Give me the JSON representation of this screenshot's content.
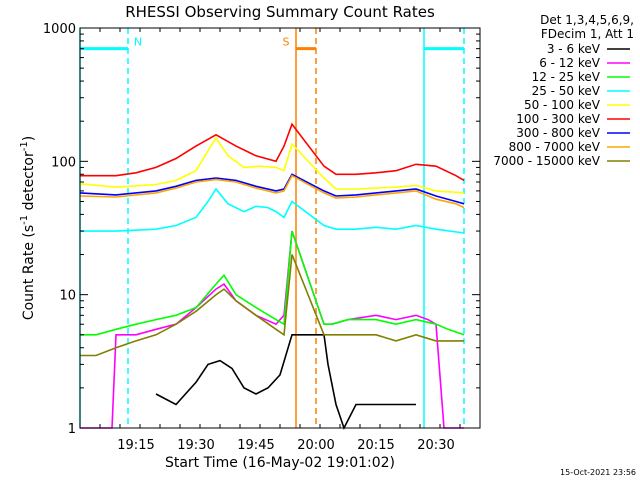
{
  "chart_data": {
    "type": "line",
    "title": "RHESSI Observing Summary Count Rates",
    "xlabel": "Start Time (16-May-02 19:01:02)",
    "ylabel": "Count Rate (s⁻¹ detector⁻¹)",
    "ylabel_parts": {
      "main": "Count Rate (s",
      "exp1": "-1",
      "mid": " detector",
      "exp2": "-1",
      "end": ")"
    },
    "y_scale": "log",
    "ylim": [
      1,
      1000
    ],
    "y_ticks": [
      {
        "value": 1,
        "label": "1"
      },
      {
        "value": 10,
        "label": "10"
      },
      {
        "value": 100,
        "label": "100"
      },
      {
        "value": 1000,
        "label": "1000"
      }
    ],
    "xlim": [
      "19:01",
      "20:41"
    ],
    "x_ticks": [
      {
        "time": "19:15",
        "label": "19:15"
      },
      {
        "time": "19:30",
        "label": "19:30"
      },
      {
        "time": "19:45",
        "label": "19:45"
      },
      {
        "time": "20:00",
        "label": "20:00"
      },
      {
        "time": "20:15",
        "label": "20:15"
      },
      {
        "time": "20:30",
        "label": "20:30"
      }
    ],
    "legend": {
      "placement": "right",
      "header": [
        "Det 1,3,4,5,6,9,",
        "FDecim 1, Att 1"
      ]
    },
    "series": [
      {
        "name": "3 - 6 keV",
        "color": "#000000",
        "x": [
          "19:01",
          "19:14",
          "19:20",
          "19:25",
          "19:30",
          "19:33",
          "19:36",
          "19:39",
          "19:42",
          "19:45",
          "19:48",
          "19:51",
          "19:54",
          "20:02",
          "20:03",
          "20:05",
          "20:07",
          "20:10",
          "20:15",
          "20:20",
          "20:25",
          "20:30",
          "20:37"
        ],
        "y": [
          null,
          null,
          1.8,
          1.5,
          2.2,
          3,
          3.2,
          2.8,
          2,
          1.8,
          2,
          2.5,
          5,
          5,
          3,
          1.5,
          1,
          1.5,
          1.5,
          1.5,
          1.5,
          null,
          null
        ]
      },
      {
        "name": "6 - 12 keV",
        "color": "#ff00ff",
        "x": [
          "19:01",
          "19:09",
          "19:10",
          "19:15",
          "19:20",
          "19:25",
          "19:30",
          "19:35",
          "19:37",
          "19:40",
          "19:45",
          "19:50",
          "19:52",
          "19:54",
          "20:02",
          "20:04",
          "20:08",
          "20:15",
          "20:20",
          "20:25",
          "20:28",
          "20:30",
          "20:32",
          "20:37"
        ],
        "y": [
          1,
          1,
          5,
          5,
          5.5,
          6,
          8,
          11,
          12,
          9,
          7,
          6,
          7,
          30,
          6,
          6,
          6.5,
          7,
          6.5,
          7,
          6.5,
          6,
          1,
          1
        ]
      },
      {
        "name": "12 - 25 keV",
        "color": "#00ff00",
        "x": [
          "19:01",
          "19:05",
          "19:10",
          "19:15",
          "19:20",
          "19:25",
          "19:30",
          "19:35",
          "19:37",
          "19:40",
          "19:45",
          "19:50",
          "19:52",
          "19:54",
          "20:02",
          "20:04",
          "20:08",
          "20:15",
          "20:20",
          "20:25",
          "20:30",
          "20:33",
          "20:37"
        ],
        "y": [
          5,
          5,
          5.5,
          6,
          6.5,
          7,
          8,
          12,
          14,
          10,
          8,
          6.5,
          6,
          30,
          6,
          6,
          6.5,
          6.5,
          6,
          6.5,
          6,
          5.5,
          5
        ]
      },
      {
        "name": "25 - 50 keV",
        "color": "#00ffff",
        "x": [
          "19:01",
          "19:10",
          "19:20",
          "19:25",
          "19:30",
          "19:33",
          "19:35",
          "19:38",
          "19:42",
          "19:45",
          "19:48",
          "19:50",
          "19:52",
          "19:54",
          "20:02",
          "20:05",
          "20:10",
          "20:15",
          "20:20",
          "20:25",
          "20:30",
          "20:37"
        ],
        "y": [
          30,
          30,
          31,
          33,
          38,
          50,
          62,
          48,
          42,
          46,
          45,
          42,
          38,
          50,
          33,
          31,
          31,
          32,
          31,
          33,
          31,
          29
        ]
      },
      {
        "name": "50 - 100 keV",
        "color": "#ffff00",
        "x": [
          "19:01",
          "19:10",
          "19:20",
          "19:25",
          "19:30",
          "19:33",
          "19:35",
          "19:38",
          "19:42",
          "19:46",
          "19:50",
          "19:52",
          "19:54",
          "20:02",
          "20:05",
          "20:10",
          "20:15",
          "20:20",
          "20:25",
          "20:30",
          "20:37"
        ],
        "y": [
          68,
          64,
          67,
          72,
          85,
          120,
          150,
          110,
          90,
          92,
          90,
          85,
          135,
          75,
          62,
          62,
          63,
          64,
          66,
          60,
          58
        ]
      },
      {
        "name": "100 - 300 keV",
        "color": "#ff0000",
        "x": [
          "19:01",
          "19:10",
          "19:15",
          "19:20",
          "19:25",
          "19:30",
          "19:35",
          "19:40",
          "19:45",
          "19:50",
          "19:52",
          "19:54",
          "20:02",
          "20:05",
          "20:10",
          "20:15",
          "20:20",
          "20:25",
          "20:30",
          "20:35",
          "20:37"
        ],
        "y": [
          78,
          78,
          82,
          90,
          105,
          130,
          158,
          130,
          110,
          100,
          130,
          190,
          92,
          80,
          80,
          82,
          85,
          95,
          92,
          78,
          72
        ]
      },
      {
        "name": "300 - 800 keV",
        "color": "#0000ff",
        "x": [
          "19:01",
          "19:10",
          "19:20",
          "19:25",
          "19:30",
          "19:35",
          "19:40",
          "19:45",
          "19:50",
          "19:52",
          "19:54",
          "20:02",
          "20:05",
          "20:10",
          "20:15",
          "20:20",
          "20:25",
          "20:30",
          "20:35",
          "20:37"
        ],
        "y": [
          58,
          56,
          60,
          65,
          72,
          75,
          72,
          65,
          60,
          62,
          80,
          60,
          55,
          56,
          58,
          60,
          62,
          55,
          50,
          48
        ]
      },
      {
        "name": "800 - 7000 keV",
        "color": "#ffa500",
        "x": [
          "19:01",
          "19:10",
          "19:20",
          "19:25",
          "19:30",
          "19:35",
          "19:40",
          "19:45",
          "19:50",
          "19:52",
          "19:54",
          "20:02",
          "20:05",
          "20:10",
          "20:15",
          "20:20",
          "20:25",
          "20:30",
          "20:35",
          "20:37"
        ],
        "y": [
          55,
          54,
          58,
          63,
          70,
          73,
          70,
          63,
          58,
          60,
          78,
          58,
          53,
          54,
          56,
          58,
          60,
          52,
          48,
          45
        ]
      },
      {
        "name": "7000 - 15000 keV",
        "color": "#808000",
        "x": [
          "19:01",
          "19:05",
          "19:10",
          "19:15",
          "19:20",
          "19:25",
          "19:30",
          "19:35",
          "19:37",
          "19:40",
          "19:45",
          "19:50",
          "19:52",
          "19:54",
          "20:02",
          "20:04",
          "20:08",
          "20:15",
          "20:20",
          "20:25",
          "20:30",
          "20:33",
          "20:37"
        ],
        "y": [
          3.5,
          3.5,
          4,
          4.5,
          5,
          6,
          7.5,
          10,
          11,
          9,
          7,
          5.5,
          5,
          20,
          5,
          5,
          5,
          5,
          4.5,
          5,
          4.5,
          4.5,
          4.5
        ]
      }
    ],
    "annotations": [
      {
        "label": "N",
        "color": "#00ffff",
        "segments": [
          [
            "19:01",
            "19:13"
          ],
          [
            "20:27",
            "20:37"
          ]
        ],
        "level": 700
      },
      {
        "label": "S",
        "color": "#ff8000",
        "segments": [
          [
            "19:55",
            "20:00"
          ]
        ],
        "level": 700
      }
    ],
    "markers": [
      {
        "time": "19:01",
        "color": "#00ffff",
        "style": "solid"
      },
      {
        "time": "19:13",
        "color": "#00ffff",
        "style": "dashed"
      },
      {
        "time": "20:27",
        "color": "#00ffff",
        "style": "solid"
      },
      {
        "time": "20:37",
        "color": "#00ffff",
        "style": "dashed"
      },
      {
        "time": "19:55",
        "color": "#ff8000",
        "style": "solid"
      },
      {
        "time": "20:00",
        "color": "#ff8000",
        "style": "dashed"
      }
    ],
    "timestamp": "15-Oct-2021 23:56"
  }
}
